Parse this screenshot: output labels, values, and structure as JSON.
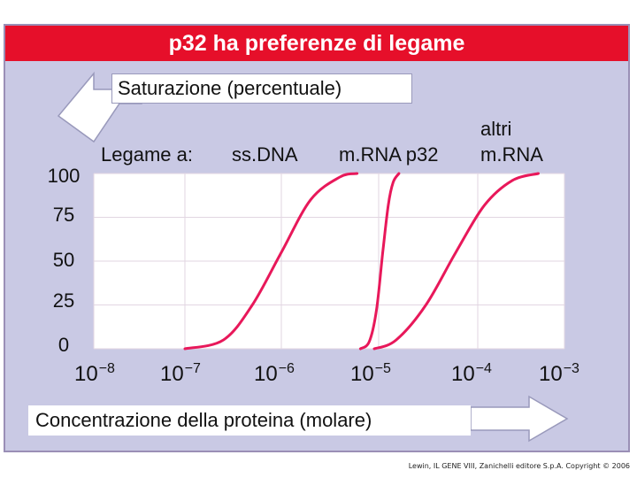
{
  "slide": {
    "title": "p32 ha preferenze di legame",
    "credit": "Lewin, IL GENE VIII, Zanichelli editore S.p.A. Copyright © 2006"
  },
  "chart_data": {
    "type": "line",
    "ylabel": "Saturazione (percentuale)",
    "xlabel": "Concentrazione della proteina (molare)",
    "legend_prefix": "Legame a:",
    "x_scale": "log",
    "xlim": [
      1e-08,
      0.001
    ],
    "ylim": [
      0,
      100
    ],
    "y_ticks": [
      "100",
      "75",
      "50",
      "25",
      "0"
    ],
    "x_ticks": [
      {
        "base": "10",
        "exp": "−8"
      },
      {
        "base": "10",
        "exp": "−7"
      },
      {
        "base": "10",
        "exp": "−6"
      },
      {
        "base": "10",
        "exp": "−5"
      },
      {
        "base": "10",
        "exp": "−4"
      },
      {
        "base": "10",
        "exp": "−3"
      }
    ],
    "grid": true,
    "line_color": "#e8185a",
    "series": [
      {
        "name": "ss.DNA",
        "x": [
          1e-07,
          2.5e-07,
          5e-07,
          1e-06,
          2e-06,
          4e-06,
          6e-06
        ],
        "y": [
          0,
          5,
          25,
          55,
          85,
          98,
          100
        ]
      },
      {
        "name": "m.RNA p32",
        "x": [
          6.5e-06,
          8e-06,
          9.5e-06,
          1.1e-05,
          1.25e-05,
          1.4e-05,
          1.6e-05
        ],
        "y": [
          0,
          4,
          22,
          55,
          82,
          95,
          100
        ]
      },
      {
        "name": "altri m.RNA",
        "x": [
          9e-06,
          1.5e-05,
          3e-05,
          6e-05,
          0.00012,
          0.00025,
          0.0005
        ],
        "y": [
          0,
          5,
          25,
          55,
          82,
          96,
          100
        ]
      }
    ],
    "series_labels": [
      {
        "line1": "",
        "line2": "ss.DNA"
      },
      {
        "line1": "",
        "line2": "m.RNA p32"
      },
      {
        "line1": "altri",
        "line2": "m.RNA"
      }
    ]
  }
}
